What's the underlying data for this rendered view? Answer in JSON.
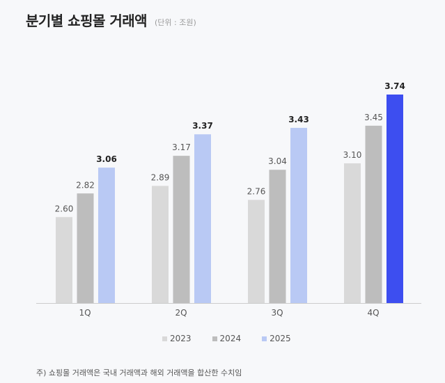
{
  "chart_data": {
    "type": "bar",
    "title": "분기별 쇼핑몰 거래액",
    "unit_label": "(단위 : 조원)",
    "categories": [
      "1Q",
      "2Q",
      "3Q",
      "4Q"
    ],
    "series": [
      {
        "name": "2023",
        "values": [
          2.6,
          2.89,
          2.76,
          3.1
        ],
        "color": "#d9d9d9"
      },
      {
        "name": "2024",
        "values": [
          2.82,
          3.17,
          3.04,
          3.45
        ],
        "color": "#bdbdbd"
      },
      {
        "name": "2025",
        "values": [
          3.06,
          3.37,
          3.43,
          3.74
        ],
        "color": "#b9c9f4"
      }
    ],
    "highlight": {
      "series": "2025",
      "category": "4Q",
      "color": "#3d4ef0"
    },
    "ylim": [
      1.8,
      3.8
    ],
    "grid": false,
    "legend": "bottom",
    "note": "주) 쇼핑몰 거래액은 국내 거래액과 해외 거래액을 합산한 수치임"
  }
}
